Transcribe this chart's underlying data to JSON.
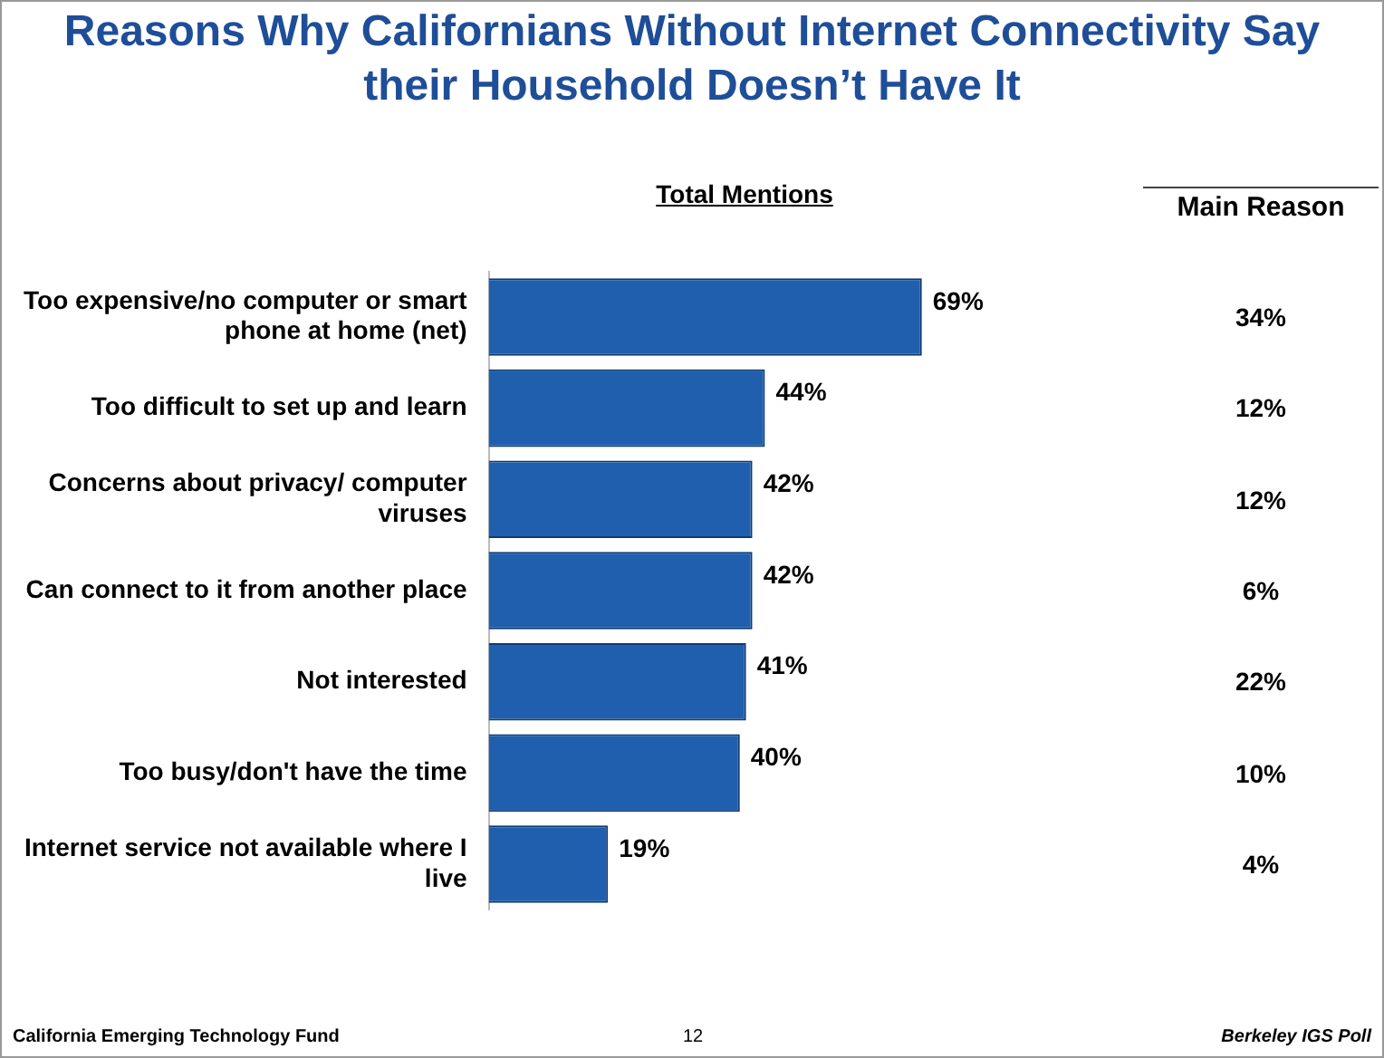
{
  "chart_data": [
    {
      "type": "bar",
      "orientation": "horizontal",
      "title": "Reasons Why Californians Without Internet Connectivity Say their Household Doesn’t Have It",
      "subtitle": "Total Mentions",
      "categories": [
        "Too expensive/no computer or smart phone at home (net)",
        "Too difficult to set up and learn",
        "Concerns about privacy/ computer viruses",
        "Can connect to it from another place",
        "Not interested",
        "Too busy/don't have the time",
        "Internet service not available where I live"
      ],
      "values": [
        69,
        44,
        42,
        42,
        41,
        40,
        19
      ],
      "value_labels": [
        "69%",
        "44%",
        "42%",
        "42%",
        "41%",
        "40%",
        "19%"
      ],
      "color": "#1f5fad",
      "tick_labels": "y",
      "grid": false,
      "legend": false,
      "annotations": [
        "California Emerging Technology Fund",
        "12",
        "Berkeley IGS Poll"
      ]
    },
    {
      "type": "other",
      "title": "Main Reason",
      "annotations": [
        "34%",
        "12%",
        "12%",
        "6%",
        "22%",
        "10%",
        "4%"
      ]
    }
  ]
}
